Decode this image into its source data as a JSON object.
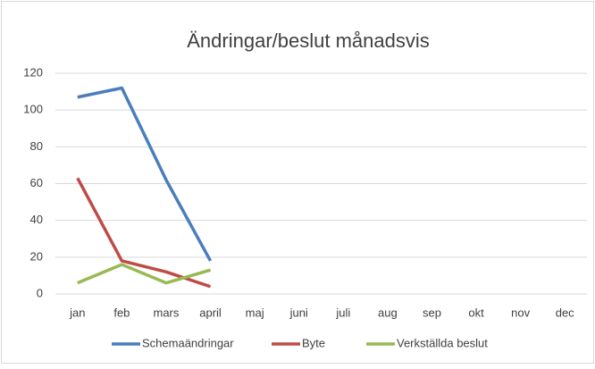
{
  "chart_data": {
    "type": "line",
    "title": "Ändringar/beslut månadsvis",
    "categories": [
      "jan",
      "feb",
      "mars",
      "april",
      "maj",
      "juni",
      "juli",
      "aug",
      "sep",
      "okt",
      "nov",
      "dec"
    ],
    "series": [
      {
        "name": "Schemaändringar",
        "color": "#4a7ebb",
        "values": [
          107,
          112,
          62,
          18,
          null,
          null,
          null,
          null,
          null,
          null,
          null,
          null
        ]
      },
      {
        "name": "Byte",
        "color": "#be4b48",
        "values": [
          63,
          18,
          12,
          4,
          null,
          null,
          null,
          null,
          null,
          null,
          null,
          null
        ]
      },
      {
        "name": "Verkställda beslut",
        "color": "#98b954",
        "values": [
          6,
          16,
          6,
          13,
          null,
          null,
          null,
          null,
          null,
          null,
          null,
          null
        ]
      }
    ],
    "ylim": [
      0,
      120
    ],
    "yticks": [
      0,
      20,
      40,
      60,
      80,
      100,
      120
    ],
    "grid": true,
    "legend": "bottom"
  }
}
